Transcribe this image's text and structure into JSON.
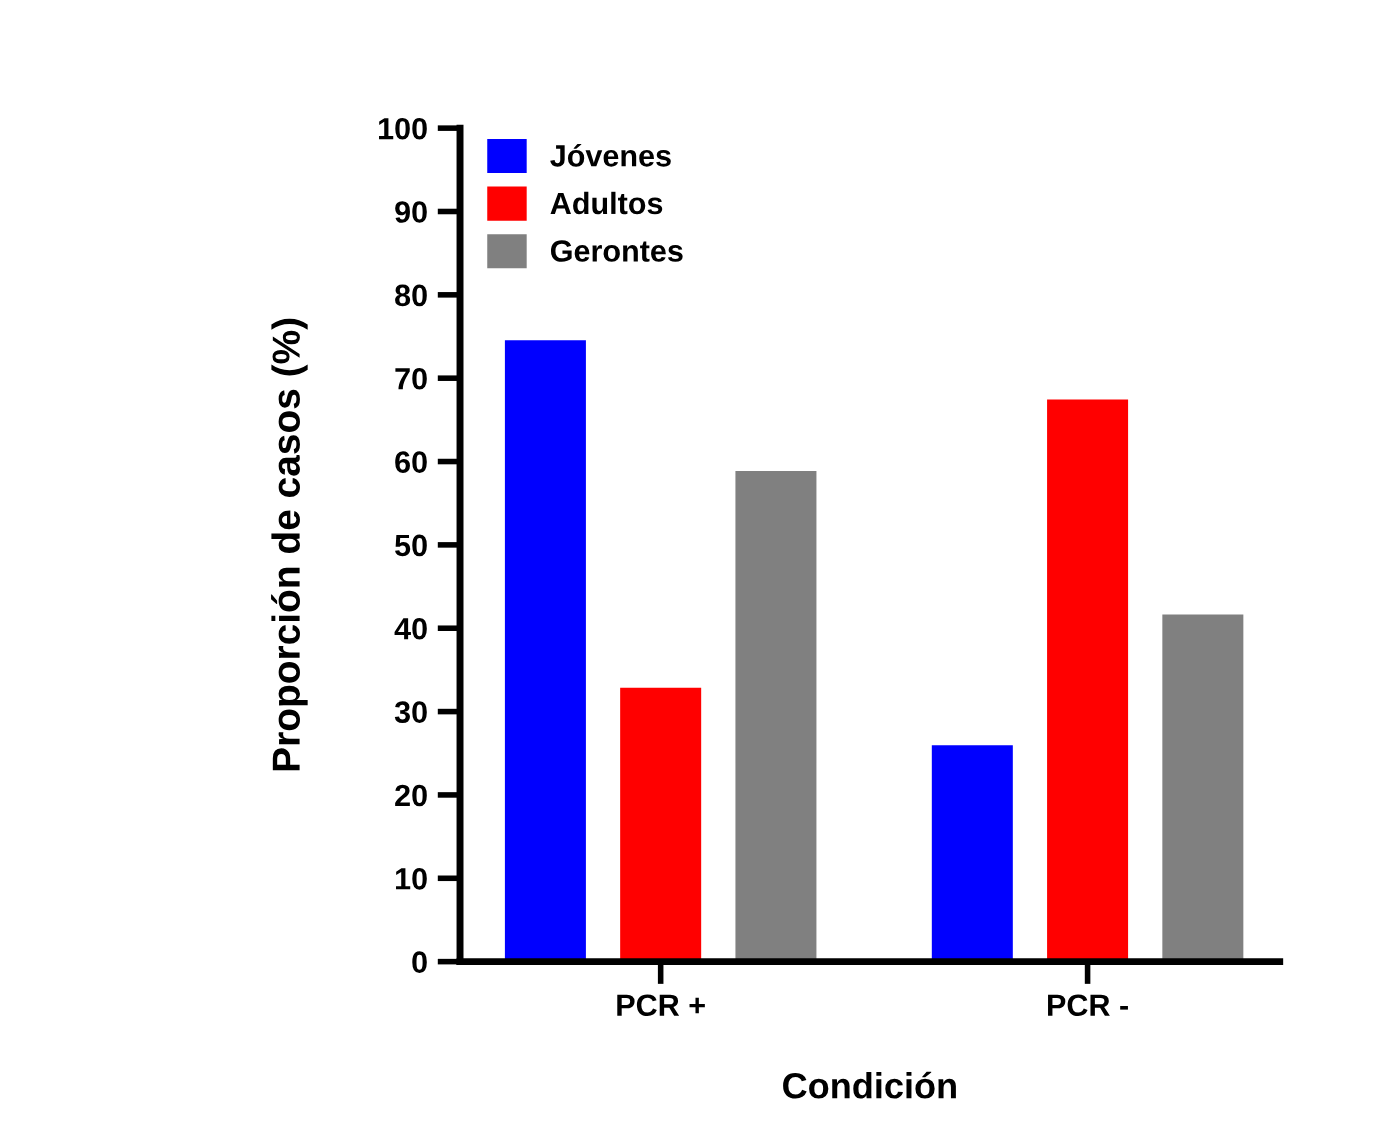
{
  "chart_data": {
    "type": "bar",
    "xlabel": "Condición",
    "ylabel": "Proporción de casos (%)",
    "categories": [
      "PCR +",
      "PCR -"
    ],
    "series": [
      {
        "name": "Jóvenes",
        "color": "#0000ff",
        "values": [
          74.3,
          25.7
        ]
      },
      {
        "name": "Adultos",
        "color": "#ff0000",
        "values": [
          32.6,
          67.2
        ]
      },
      {
        "name": "Gerontes",
        "color": "#808080",
        "values": [
          58.6,
          41.4
        ]
      }
    ],
    "ylim": [
      0,
      100
    ],
    "yticks": [
      0,
      10,
      20,
      30,
      40,
      50,
      60,
      70,
      80,
      90,
      100
    ],
    "grid": false,
    "legend": "top left"
  }
}
